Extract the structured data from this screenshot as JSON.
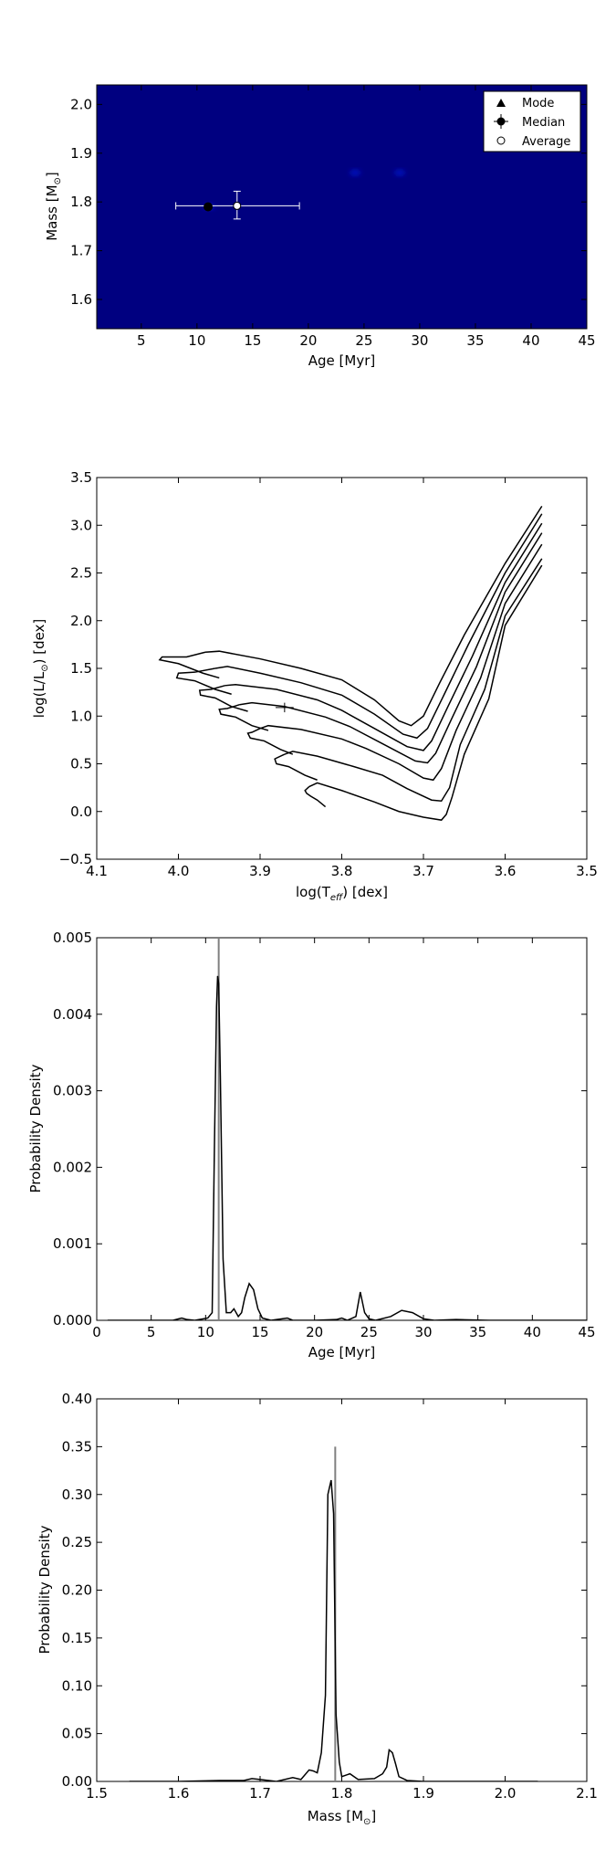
{
  "chart_data": [
    {
      "type": "heatmap",
      "xlabel": "Age [Myr]",
      "ylabel": "Mass [M",
      "ylabel_sub": "⊙",
      "ylabel_suffix": "]",
      "xlim": [
        1,
        45
      ],
      "ylim": [
        1.54,
        2.04
      ],
      "xticks": [
        5,
        10,
        15,
        20,
        25,
        30,
        35,
        40,
        45
      ],
      "yticks": [
        1.6,
        1.7,
        1.8,
        1.9,
        2.0
      ],
      "xtick_labels": [
        "5",
        "10",
        "15",
        "20",
        "25",
        "30",
        "35",
        "40",
        "45"
      ],
      "ytick_labels": [
        "1.6",
        "1.7",
        "1.8",
        "1.9",
        "2.0"
      ],
      "background_color": "#000080",
      "hotspots": [
        {
          "x": 11.1,
          "y": 1.79
        },
        {
          "x": 24.2,
          "y": 1.86
        },
        {
          "x": 28.2,
          "y": 1.86
        }
      ],
      "legend": {
        "position": "upper right",
        "entries": [
          {
            "label": "Mode",
            "marker": "triangle"
          },
          {
            "label": "Median",
            "marker": "filled-circle-errorbar"
          },
          {
            "label": "Average",
            "marker": "open-circle"
          }
        ]
      },
      "median": {
        "x": 11.0,
        "y": 1.79
      },
      "average": {
        "x": 13.6,
        "y": 1.792,
        "xerr": [
          8.1,
          19.2
        ],
        "yerr": [
          1.765,
          1.822
        ]
      }
    },
    {
      "type": "line",
      "xlabel": "log(T",
      "xlabel_sub": "eff",
      "xlabel_suffix": ") [dex]",
      "ylabel": "log(L/L",
      "ylabel_sub": "⊙",
      "ylabel_suffix": ") [dex]",
      "xlim": [
        4.1,
        3.5
      ],
      "ylim": [
        -0.5,
        3.5
      ],
      "xticks": [
        4.1,
        4.0,
        3.9,
        3.8,
        3.7,
        3.6,
        3.5
      ],
      "yticks": [
        -0.5,
        0.0,
        0.5,
        1.0,
        1.5,
        2.0,
        2.5,
        3.0,
        3.5
      ],
      "xtick_labels": [
        "4.1",
        "4.0",
        "3.9",
        "3.8",
        "3.7",
        "3.6",
        "3.5"
      ],
      "ytick_labels": [
        "−0.5",
        "0.0",
        "0.5",
        "1.0",
        "1.5",
        "2.0",
        "2.5",
        "3.0",
        "3.5"
      ],
      "series": [
        {
          "x": [
            3.967,
            3.95,
            3.9,
            3.85,
            3.8,
            3.76,
            3.73,
            3.715,
            3.7,
            3.68,
            3.65,
            3.6,
            3.555
          ],
          "y": [
            1.67,
            1.68,
            1.6,
            1.5,
            1.38,
            1.17,
            0.95,
            0.9,
            1.0,
            1.35,
            1.85,
            2.6,
            3.2
          ]
        },
        {
          "x": [
            3.955,
            3.94,
            3.9,
            3.85,
            3.8,
            3.76,
            3.725,
            3.708,
            3.695,
            3.675,
            3.645,
            3.6,
            3.555
          ],
          "y": [
            1.5,
            1.52,
            1.45,
            1.35,
            1.22,
            1.02,
            0.81,
            0.77,
            0.87,
            1.22,
            1.75,
            2.5,
            3.12
          ]
        },
        {
          "x": [
            3.943,
            3.93,
            3.88,
            3.83,
            3.8,
            3.76,
            3.72,
            3.7,
            3.69,
            3.67,
            3.64,
            3.6,
            3.555
          ],
          "y": [
            1.32,
            1.33,
            1.28,
            1.17,
            1.06,
            0.87,
            0.68,
            0.64,
            0.74,
            1.1,
            1.63,
            2.4,
            3.02
          ]
        },
        {
          "x": [
            3.925,
            3.91,
            3.87,
            3.82,
            3.79,
            3.75,
            3.71,
            3.695,
            3.685,
            3.665,
            3.635,
            3.6,
            3.555
          ],
          "y": [
            1.12,
            1.14,
            1.1,
            0.99,
            0.89,
            0.71,
            0.53,
            0.51,
            0.61,
            0.98,
            1.52,
            2.3,
            2.92
          ]
        },
        {
          "x": [
            3.9,
            3.89,
            3.85,
            3.8,
            3.77,
            3.73,
            3.7,
            3.688,
            3.678,
            3.66,
            3.63,
            3.6,
            3.555
          ],
          "y": [
            0.87,
            0.9,
            0.86,
            0.76,
            0.66,
            0.5,
            0.35,
            0.33,
            0.45,
            0.85,
            1.4,
            2.18,
            2.8
          ]
        },
        {
          "x": [
            3.87,
            3.86,
            3.83,
            3.785,
            3.75,
            3.72,
            3.69,
            3.678,
            3.668,
            3.655,
            3.625,
            3.6,
            3.555
          ],
          "y": [
            0.6,
            0.63,
            0.58,
            0.47,
            0.38,
            0.24,
            0.12,
            0.11,
            0.25,
            0.7,
            1.28,
            2.05,
            2.65
          ]
        },
        {
          "x": [
            3.84,
            3.83,
            3.8,
            3.76,
            3.73,
            3.7,
            3.678,
            3.672,
            3.665,
            3.65,
            3.62,
            3.6,
            3.555
          ],
          "y": [
            0.26,
            0.3,
            0.22,
            0.1,
            0.0,
            -0.06,
            -0.09,
            -0.03,
            0.15,
            0.6,
            1.18,
            1.95,
            2.58
          ]
        }
      ],
      "hooks": [
        {
          "x": [
            3.967,
            3.99,
            4.02,
            4.023,
            4.0,
            3.97,
            3.95
          ],
          "y": [
            1.67,
            1.62,
            1.62,
            1.59,
            1.55,
            1.45,
            1.4
          ]
        },
        {
          "x": [
            3.955,
            3.98,
            4.0,
            4.002,
            3.98,
            3.955,
            3.935
          ],
          "y": [
            1.5,
            1.46,
            1.45,
            1.4,
            1.37,
            1.28,
            1.23
          ]
        },
        {
          "x": [
            3.943,
            3.96,
            3.974,
            3.973,
            3.955,
            3.935,
            3.915
          ],
          "y": [
            1.32,
            1.28,
            1.27,
            1.22,
            1.19,
            1.1,
            1.05
          ]
        },
        {
          "x": [
            3.925,
            3.94,
            3.95,
            3.948,
            3.93,
            3.91,
            3.89
          ],
          "y": [
            1.12,
            1.08,
            1.07,
            1.02,
            0.99,
            0.9,
            0.85
          ]
        },
        {
          "x": [
            3.9,
            3.91,
            3.915,
            3.912,
            3.895,
            3.875,
            3.86
          ],
          "y": [
            0.87,
            0.83,
            0.82,
            0.77,
            0.74,
            0.65,
            0.6
          ]
        },
        {
          "x": [
            3.87,
            3.88,
            3.882,
            3.88,
            3.865,
            3.845,
            3.83
          ],
          "y": [
            0.6,
            0.56,
            0.55,
            0.5,
            0.47,
            0.38,
            0.33
          ]
        },
        {
          "x": [
            3.84,
            3.845,
            3.843,
            3.838,
            3.83,
            3.82
          ],
          "y": [
            0.26,
            0.22,
            0.19,
            0.16,
            0.12,
            0.05
          ]
        }
      ],
      "star": {
        "x": 3.87,
        "y": 1.09,
        "xerr": [
          3.881,
          3.859
        ],
        "yerr": [
          1.04,
          1.14
        ]
      }
    },
    {
      "type": "line",
      "xlabel": "Age [Myr]",
      "ylabel": "Probability Density",
      "xlim": [
        0,
        45
      ],
      "ylim": [
        0,
        0.005
      ],
      "xticks": [
        0,
        5,
        10,
        15,
        20,
        25,
        30,
        35,
        40,
        45
      ],
      "yticks": [
        0.0,
        0.001,
        0.002,
        0.003,
        0.004,
        0.005
      ],
      "xtick_labels": [
        "0",
        "5",
        "10",
        "15",
        "20",
        "25",
        "30",
        "35",
        "40",
        "45"
      ],
      "ytick_labels": [
        "0.000",
        "0.001",
        "0.002",
        "0.003",
        "0.004",
        "0.005"
      ],
      "x": [
        1,
        3,
        5,
        7,
        7.8,
        8.3,
        9,
        10.2,
        10.6,
        10.8,
        11.0,
        11.1,
        11.2,
        11.35,
        11.6,
        11.9,
        12.3,
        12.6,
        13.0,
        13.3,
        13.6,
        14.0,
        14.4,
        14.8,
        15.2,
        16,
        17,
        17.5,
        18,
        20,
        22,
        22.5,
        23,
        23.8,
        24.2,
        24.6,
        25.0,
        25.6,
        27,
        28,
        29,
        30,
        31,
        33,
        36,
        40,
        45
      ],
      "y": [
        0,
        0,
        0,
        0,
        3e-05,
        1e-05,
        0,
        3e-05,
        0.0001,
        0.0022,
        0.0041,
        0.0045,
        0.0044,
        0.0032,
        0.0008,
        0.0001,
        0.0001,
        0.00015,
        5e-05,
        0.0001,
        0.0003,
        0.00048,
        0.0004,
        0.00015,
        3e-05,
        0,
        2e-05,
        3e-05,
        0,
        0,
        1e-05,
        3e-05,
        0,
        5e-05,
        0.00037,
        0.0001,
        2e-05,
        0,
        5e-05,
        0.00013,
        0.0001,
        2e-05,
        0,
        1e-05,
        0,
        0,
        0
      ],
      "vertical_line": {
        "x": 11.2,
        "color": "#808080"
      }
    },
    {
      "type": "line",
      "xlabel": "Mass [M",
      "xlabel_sub": "⊙",
      "xlabel_suffix": "]",
      "ylabel": "Probability Density",
      "xlim": [
        1.5,
        2.1
      ],
      "ylim": [
        0,
        0.4
      ],
      "xticks": [
        1.5,
        1.6,
        1.7,
        1.8,
        1.9,
        2.0,
        2.1
      ],
      "yticks": [
        0.0,
        0.05,
        0.1,
        0.15,
        0.2,
        0.25,
        0.3,
        0.35,
        0.4
      ],
      "xtick_labels": [
        "1.5",
        "1.6",
        "1.7",
        "1.8",
        "1.9",
        "2.0",
        "2.1"
      ],
      "ytick_labels": [
        "0.00",
        "0.05",
        "0.10",
        "0.15",
        "0.20",
        "0.25",
        "0.30",
        "0.35",
        "0.40"
      ],
      "x": [
        1.54,
        1.6,
        1.65,
        1.68,
        1.69,
        1.7,
        1.72,
        1.74,
        1.75,
        1.76,
        1.765,
        1.77,
        1.775,
        1.78,
        1.783,
        1.787,
        1.79,
        1.793,
        1.797,
        1.8,
        1.81,
        1.82,
        1.84,
        1.85,
        1.855,
        1.858,
        1.862,
        1.866,
        1.87,
        1.88,
        1.9,
        1.95,
        2.0,
        2.04
      ],
      "y": [
        0,
        0,
        0.001,
        0.001,
        0.003,
        0.002,
        0,
        0.004,
        0.002,
        0.012,
        0.011,
        0.009,
        0.03,
        0.09,
        0.3,
        0.315,
        0.28,
        0.07,
        0.02,
        0.005,
        0.008,
        0.002,
        0.003,
        0.008,
        0.015,
        0.033,
        0.03,
        0.018,
        0.005,
        0.001,
        0,
        0,
        0,
        0
      ],
      "vertical_line": {
        "x": 1.792,
        "color": "#808080"
      }
    }
  ]
}
